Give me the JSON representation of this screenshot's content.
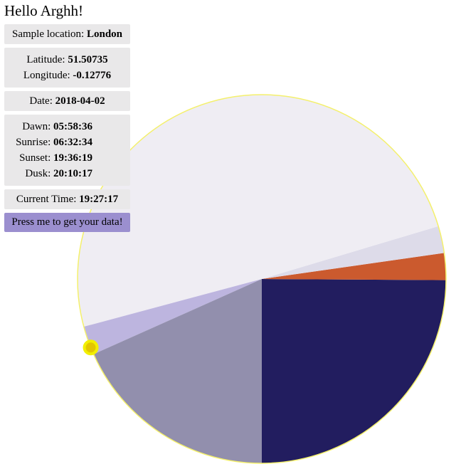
{
  "greeting": "Hello Arghh!",
  "location": {
    "label": "Sample location:",
    "value": "London"
  },
  "coords": {
    "lat_label": "Latitude:",
    "lat": "51.50735",
    "lon_label": "Longitude:",
    "lon": "-0.12776"
  },
  "date": {
    "label": "Date:",
    "value": "2018-04-02"
  },
  "sun_times": {
    "dawn_label": "Dawn:",
    "dawn": "05:58:36",
    "sunrise_label": "Sunrise:",
    "sunrise": "06:32:34",
    "sunset_label": "Sunset:",
    "sunset": "19:36:19",
    "dusk_label": "Dusk:",
    "dusk": "20:10:17"
  },
  "current_time": {
    "label": "Current Time:",
    "value": "19:27:17"
  },
  "button_label": "Press me to get your data!",
  "clock": {
    "current_time_fraction": 0.81061,
    "marker_color": "#f2ef00",
    "rim_color": "#f4f06c",
    "segments": [
      {
        "from": "00:00:00",
        "to": "05:58:36",
        "color": "#221d5f"
      },
      {
        "from": "05:58:36",
        "to": "06:32:34",
        "color": "#cb5a2e"
      },
      {
        "from": "06:32:34",
        "to": "07:06:34",
        "color": "#dddbe9"
      },
      {
        "from": "07:06:34",
        "to": "19:00:00",
        "color": "#efedf3"
      },
      {
        "from": "19:00:00",
        "to": "19:36:19",
        "color": "#bdb5df"
      },
      {
        "from": "19:36:19",
        "to": "00:00:00",
        "color": "#928fad"
      }
    ]
  }
}
